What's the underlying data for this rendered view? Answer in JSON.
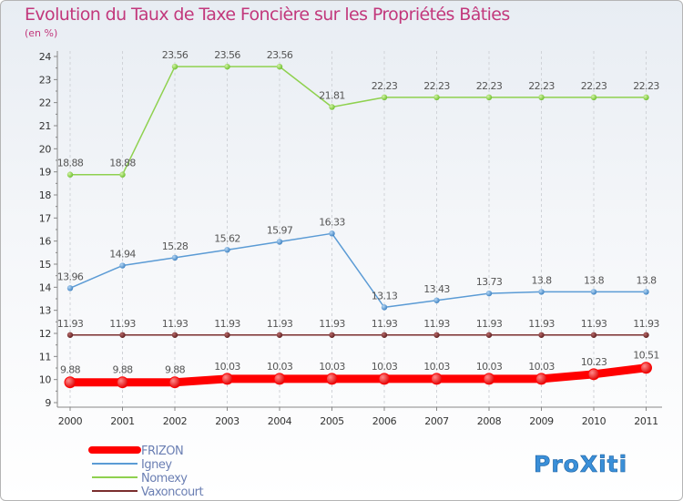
{
  "chart_data": {
    "type": "line",
    "title": "Evolution du Taux de Taxe Foncière sur les Propriétés Bâties",
    "subtitle": "(en %)",
    "xlabel": "",
    "ylabel": "",
    "ylim": [
      9,
      24
    ],
    "categories": [
      "2000",
      "2001",
      "2002",
      "2003",
      "2004",
      "2005",
      "2006",
      "2007",
      "2008",
      "2009",
      "2010",
      "2011"
    ],
    "y_ticks": [
      "9",
      "10",
      "11",
      "12",
      "13",
      "14",
      "15",
      "16",
      "17",
      "18",
      "19",
      "20",
      "21",
      "22",
      "23",
      "24"
    ],
    "legend_position": "bottom-left",
    "series": [
      {
        "name": "FRIZON",
        "color": "#ff0000",
        "values": [
          9.88,
          9.88,
          9.88,
          10.03,
          10.03,
          10.03,
          10.03,
          10.03,
          10.03,
          10.03,
          10.23,
          10.51
        ],
        "labels": [
          "9.88",
          "9.88",
          "9.88",
          "10.03",
          "10.03",
          "10.03",
          "10.03",
          "10.03",
          "10.03",
          "10.03",
          "10.23",
          "10.51"
        ]
      },
      {
        "name": "Igney",
        "color": "#5b9bd5",
        "values": [
          13.96,
          14.94,
          15.28,
          15.62,
          15.97,
          16.33,
          13.13,
          13.43,
          13.73,
          13.8,
          13.8,
          13.8
        ],
        "labels": [
          "13.96",
          "14.94",
          "15.28",
          "15.62",
          "15.97",
          "16.33",
          "13.13",
          "13.43",
          "13.73",
          "13.8",
          "13.8",
          "13.8"
        ]
      },
      {
        "name": "Nomexy",
        "color": "#8fd14f",
        "values": [
          18.88,
          18.88,
          23.56,
          23.56,
          23.56,
          21.81,
          22.23,
          22.23,
          22.23,
          22.23,
          22.23,
          22.23
        ],
        "labels": [
          "18.88",
          "18.88",
          "23.56",
          "23.56",
          "23.56",
          "21.81",
          "22.23",
          "22.23",
          "22.23",
          "22.23",
          "22.23",
          "22.23"
        ]
      },
      {
        "name": "Vaxoncourt",
        "color": "#7a2e2e",
        "values": [
          11.93,
          11.93,
          11.93,
          11.93,
          11.93,
          11.93,
          11.93,
          11.93,
          11.93,
          11.93,
          11.93,
          11.93
        ],
        "labels": [
          "11.93",
          "11.93",
          "11.93",
          "11.93",
          "11.93",
          "11.93",
          "11.93",
          "11.93",
          "11.93",
          "11.93",
          "11.93",
          "11.93"
        ]
      }
    ]
  },
  "logo": {
    "text": "ProXiti"
  }
}
